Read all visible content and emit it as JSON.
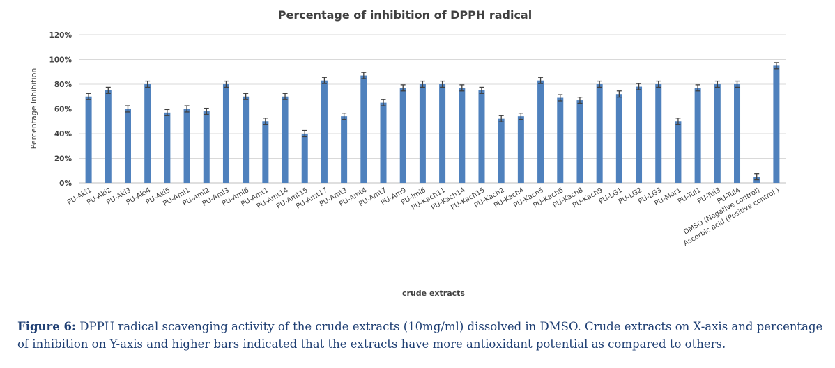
{
  "chart_data": {
    "type": "bar",
    "title": "Percentage of inhibition of DPPH radical",
    "xlabel": "crude extracts",
    "ylabel": "Percentage Inhibition",
    "ylim": [
      0,
      120
    ],
    "yticks": [
      "0%",
      "20%",
      "40%",
      "60%",
      "80%",
      "100%",
      "120%"
    ],
    "grid": true,
    "legend": "none",
    "bar_color": "#4f81bd",
    "error_color": "#404040",
    "categories": [
      "PU-Aki1",
      "PU-Aki2",
      "PU-Aki3",
      "PU-Aki4",
      "PU-Aki5",
      "PU-Aml1",
      "PU-Aml2",
      "PU-Aml3",
      "PU-Aml6",
      "PU-Amt1",
      "PU-Amt14",
      "PU-Amt15",
      "PU-Amt17",
      "PU-Amt3",
      "PU-Amt4",
      "PU-Amt7",
      "PU-Am9",
      "PU-Imi6",
      "PU-Kach11",
      "PU-Kach14",
      "PU-Kach15",
      "PU-Kach2",
      "PU-Kach4",
      "PU-Kach5",
      "PU-Kach6",
      "PU-Kach8",
      "PU-Kach9",
      "PU-LG1",
      "PU-LG2",
      "PU-LG3",
      "PU-Mor1",
      "PU-Tul1",
      "PU-Tul3",
      "PU-Tul4",
      "DMSO (Negative control)",
      "Ascorbic acid (Positive control )"
    ],
    "values": [
      70,
      75,
      60,
      80,
      57,
      60,
      58,
      80,
      70,
      50,
      70,
      40,
      83,
      54,
      87,
      65,
      77,
      80,
      80,
      77,
      75,
      52,
      54,
      83,
      69,
      67,
      80,
      72,
      78,
      80,
      50,
      77,
      80,
      80,
      5,
      95
    ],
    "errors": [
      2.5,
      2.5,
      2.5,
      2.5,
      2.5,
      2.5,
      2.5,
      2.5,
      2.5,
      2.5,
      2.5,
      2.5,
      2.5,
      2.5,
      2.5,
      2.5,
      2.5,
      2.5,
      2.5,
      2.5,
      2.5,
      2.5,
      2.5,
      2.5,
      2.5,
      2.5,
      2.5,
      2.5,
      2.5,
      2.5,
      2.5,
      2.5,
      2.5,
      2.5,
      2.5,
      2.5
    ]
  },
  "caption": {
    "label": "Figure 6:",
    "text": " DPPH radical scavenging activity of the crude extracts (10mg/ml) dissolved in DMSO. Crude extracts on X-axis and percentage of inhibition on Y-axis and higher bars indicated that the extracts have more antioxidant potential as compared to others."
  }
}
